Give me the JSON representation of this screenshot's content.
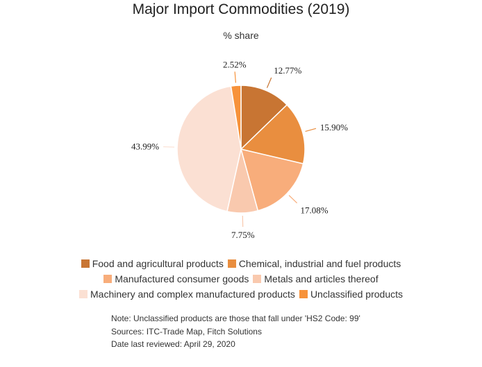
{
  "chart_data": {
    "type": "pie",
    "title": "Major Import Commodities (2019)",
    "subtitle": "% share",
    "unit": "%",
    "slices": [
      {
        "name": "Food and agricultural products",
        "value": 12.77,
        "label": "12.77%",
        "color": "#c87533"
      },
      {
        "name": "Chemical, industrial and fuel products",
        "value": 15.9,
        "label": "15.90%",
        "color": "#e98e3f"
      },
      {
        "name": "Manufactured consumer goods",
        "value": 17.08,
        "label": "17.08%",
        "color": "#f8ad7b"
      },
      {
        "name": "Metals and articles thereof",
        "value": 7.75,
        "label": "7.75%",
        "color": "#f9c9ae"
      },
      {
        "name": "Machinery and complex manufactured products",
        "value": 43.99,
        "label": "43.99%",
        "color": "#fbe0d3"
      },
      {
        "name": "Unclassified products",
        "value": 2.52,
        "label": "2.52%",
        "color": "#f7923a"
      }
    ],
    "legend_position": "bottom"
  },
  "notes": {
    "note": "Note: Unclassified products are those that fall under 'HS2 Code: 99'",
    "sources": "Sources: ITC-Trade Map, Fitch Solutions",
    "date": "Date last reviewed: April 29, 2020"
  }
}
